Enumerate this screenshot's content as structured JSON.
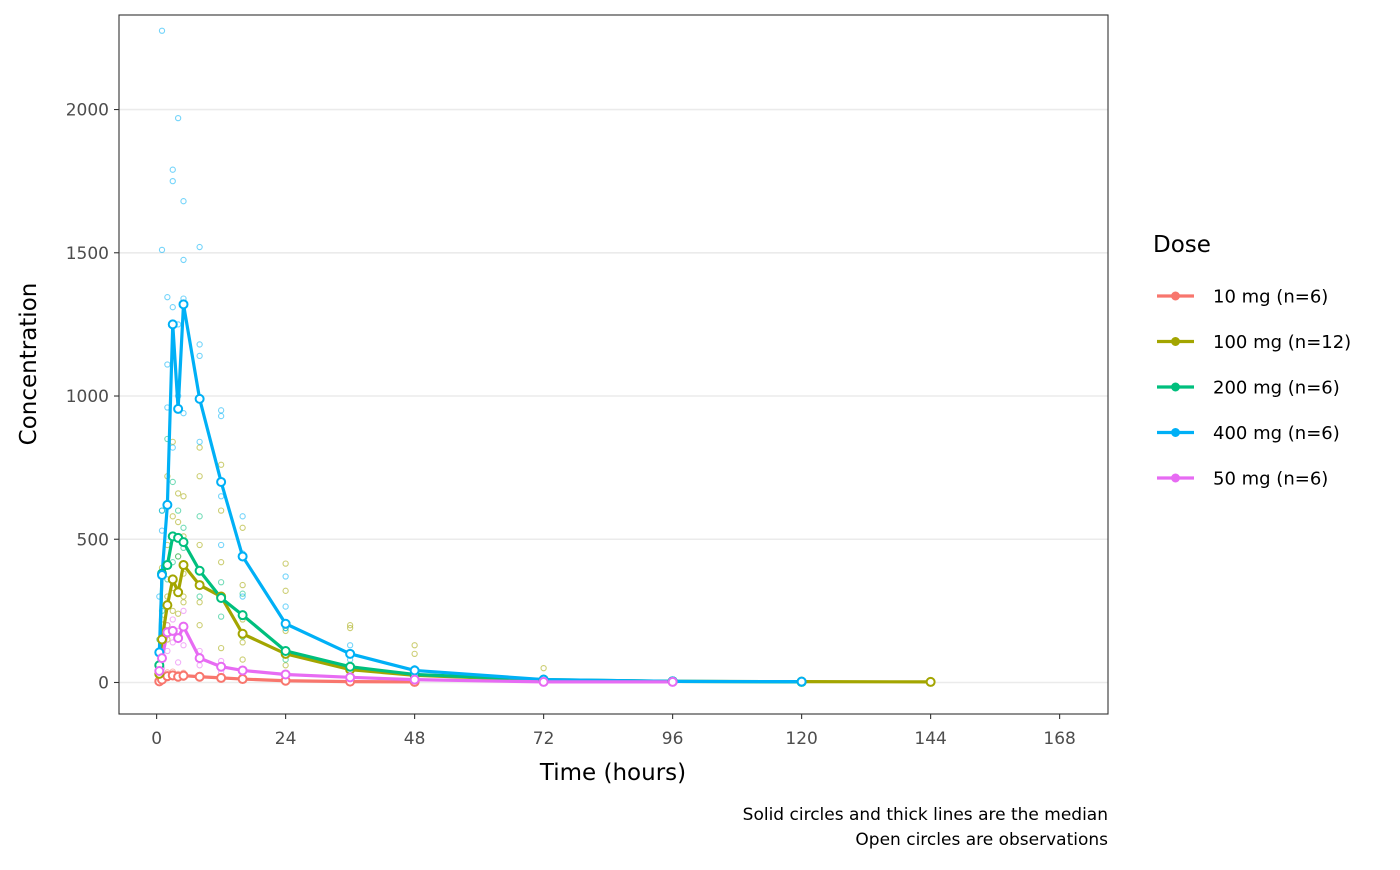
{
  "chart_data": {
    "type": "line",
    "xlabel": "Time (hours)",
    "ylabel": "Concentration",
    "xlim": [
      -7,
      177
    ],
    "ylim": [
      -110,
      2330
    ],
    "x_ticks": [
      0,
      24,
      48,
      72,
      96,
      120,
      144,
      168
    ],
    "y_ticks": [
      0,
      500,
      1000,
      1500,
      2000
    ],
    "grid": "horizontal major lines",
    "legend": {
      "title": "Dose",
      "position": "right",
      "entries": [
        "10 mg (n=6)",
        "100 mg (n=12)",
        "200 mg (n=6)",
        "400 mg (n=6)",
        "50 mg (n=6)"
      ]
    },
    "caption": [
      "Solid circles and thick lines are the median",
      "Open circles are observations"
    ],
    "series": [
      {
        "name": "10 mg (n=6)",
        "color": "#F8766D",
        "median": {
          "x": [
            0.5,
            1,
            2,
            3,
            4,
            5,
            8,
            12,
            16,
            24,
            36,
            48
          ],
          "y": [
            4,
            10,
            22,
            25,
            20,
            24,
            20,
            16,
            12,
            6,
            3,
            2
          ]
        },
        "observations": {
          "x": [
            0.5,
            0.5,
            1,
            1,
            1,
            2,
            2,
            2,
            3,
            3,
            3,
            4,
            4,
            4,
            5,
            5,
            5,
            8,
            8,
            12,
            12,
            16,
            16,
            24,
            36,
            48
          ],
          "y": [
            2,
            6,
            6,
            12,
            16,
            15,
            25,
            35,
            18,
            28,
            38,
            14,
            22,
            30,
            16,
            26,
            34,
            14,
            26,
            12,
            20,
            8,
            14,
            5,
            3,
            2
          ]
        }
      },
      {
        "name": "100 mg (n=12)",
        "color": "#A3A500",
        "median": {
          "x": [
            0.5,
            1,
            2,
            3,
            4,
            5,
            8,
            12,
            16,
            24,
            36,
            48,
            72,
            96,
            120,
            144
          ],
          "y": [
            30,
            150,
            270,
            360,
            315,
            410,
            340,
            300,
            170,
            100,
            45,
            25,
            8,
            4,
            3,
            2
          ]
        },
        "observations": {
          "x": [
            0.5,
            0.5,
            1,
            1,
            1,
            1,
            2,
            2,
            2,
            2,
            2,
            3,
            3,
            3,
            3,
            3,
            4,
            4,
            4,
            4,
            4,
            5,
            5,
            5,
            5,
            5,
            8,
            8,
            8,
            8,
            8,
            12,
            12,
            12,
            12,
            12,
            16,
            16,
            16,
            16,
            16,
            24,
            24,
            24,
            24,
            36,
            36,
            36,
            48,
            48,
            48,
            72,
            72,
            96,
            120,
            144
          ],
          "y": [
            15,
            60,
            90,
            220,
            120,
            400,
            150,
            300,
            480,
            720,
            200,
            250,
            330,
            580,
            840,
            360,
            240,
            440,
            560,
            660,
            150,
            280,
            380,
            510,
            650,
            300,
            200,
            280,
            480,
            720,
            820,
            120,
            300,
            420,
            600,
            760,
            80,
            140,
            220,
            340,
            540,
            60,
            180,
            320,
            415,
            40,
            190,
            200,
            20,
            100,
            130,
            10,
            50,
            8,
            3,
            2
          ]
        }
      },
      {
        "name": "200 mg (n=6)",
        "color": "#00BF7D",
        "median": {
          "x": [
            0.5,
            1,
            2,
            3,
            4,
            5,
            8,
            12,
            16,
            24,
            36,
            48,
            72,
            96,
            120
          ],
          "y": [
            60,
            380,
            410,
            510,
            505,
            490,
            390,
            295,
            235,
            110,
            55,
            28,
            10,
            4,
            2
          ]
        },
        "observations": {
          "x": [
            0.5,
            1,
            1,
            2,
            2,
            3,
            3,
            4,
            4,
            5,
            5,
            8,
            8,
            12,
            12,
            16,
            16,
            24,
            24,
            36,
            48
          ],
          "y": [
            150,
            250,
            600,
            360,
            850,
            420,
            700,
            440,
            600,
            470,
            540,
            300,
            580,
            230,
            350,
            160,
            310,
            80,
            190,
            40,
            20
          ]
        }
      },
      {
        "name": "400 mg (n=6)",
        "color": "#00B0F6",
        "median": {
          "x": [
            0.5,
            1,
            2,
            3,
            4,
            5,
            8,
            12,
            16,
            24,
            36,
            48,
            72,
            96,
            120
          ],
          "y": [
            105,
            375,
            620,
            1250,
            955,
            1320,
            990,
            700,
            440,
            205,
            100,
            42,
            10,
            4,
            3
          ]
        },
        "observations": {
          "x": [
            0.5,
            0.5,
            1,
            1,
            1,
            1,
            2,
            2,
            2,
            3,
            3,
            3,
            3,
            4,
            4,
            4,
            5,
            5,
            5,
            5,
            8,
            8,
            8,
            8,
            12,
            12,
            12,
            12,
            16,
            16,
            16,
            24,
            24,
            24,
            36,
            36,
            48,
            48,
            72,
            96,
            120
          ],
          "y": [
            300,
            60,
            2275,
            1510,
            600,
            530,
            1345,
            1110,
            960,
            1790,
            1750,
            1310,
            820,
            1970,
            1250,
            1000,
            1680,
            1475,
            1340,
            940,
            1520,
            1180,
            1140,
            840,
            950,
            930,
            650,
            480,
            580,
            450,
            300,
            370,
            265,
            190,
            130,
            80,
            50,
            30,
            15,
            5,
            3
          ]
        }
      },
      {
        "name": "50 mg (n=6)",
        "color": "#E76BF3",
        "median": {
          "x": [
            0.5,
            1,
            2,
            3,
            4,
            5,
            8,
            12,
            16,
            24,
            36,
            48,
            72,
            96
          ],
          "y": [
            40,
            85,
            175,
            180,
            155,
            195,
            85,
            55,
            42,
            28,
            18,
            10,
            2,
            2
          ]
        },
        "observations": {
          "x": [
            0.5,
            1,
            1,
            2,
            2,
            3,
            3,
            4,
            4,
            5,
            5,
            8,
            8,
            12,
            12,
            16,
            24,
            36,
            48
          ],
          "y": [
            20,
            50,
            120,
            110,
            200,
            140,
            220,
            70,
            180,
            130,
            250,
            60,
            110,
            35,
            75,
            30,
            20,
            12,
            6
          ]
        }
      }
    ]
  }
}
